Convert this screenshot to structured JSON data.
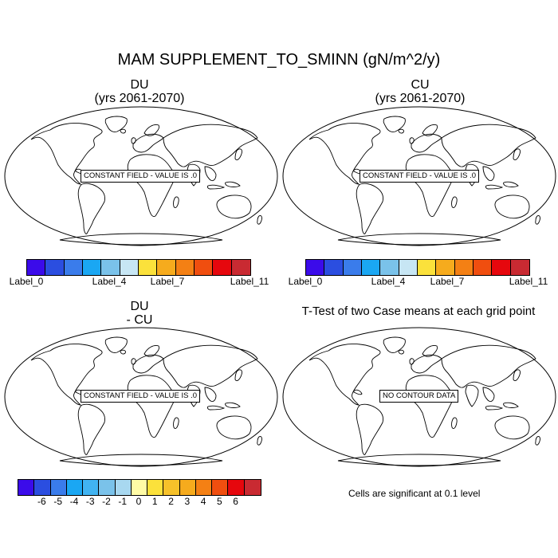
{
  "main_title": "MAM SUPPLEMENT_TO_SMINN (gN/m^2/y)",
  "panels": [
    {
      "title_line1": "DU",
      "title_line2": "(yrs 2061-2070)",
      "box_text": "CONSTANT FIELD - VALUE IS .0"
    },
    {
      "title_line1": "CU",
      "title_line2": "(yrs 2061-2070)",
      "box_text": "CONSTANT FIELD - VALUE IS .0"
    },
    {
      "title_line1": "DU",
      "title_line2": "- CU",
      "box_text": "CONSTANT FIELD - VALUE IS .0"
    },
    {
      "title_line1": "T-Test of two Case means at each grid point",
      "box_text": "NO CONTOUR DATA"
    }
  ],
  "colorbar_top": {
    "colors": [
      "#3b0bea",
      "#2b4ee0",
      "#3a7ceb",
      "#1aa7f3",
      "#7ac2ea",
      "#c7e6f4",
      "#fbe13b",
      "#f6ab1d",
      "#f48014",
      "#f04e0f",
      "#e6070d",
      "#c92a32"
    ],
    "labels": [
      "Label_0",
      "Label_4",
      "Label_7",
      "Label_11"
    ]
  },
  "colorbar_bottom": {
    "colors": [
      "#3b0bea",
      "#2b4ee0",
      "#3a7ceb",
      "#1aa7f3",
      "#41b4f2",
      "#7ac2ea",
      "#a8d8f0",
      "#fffba6",
      "#fbe13b",
      "#f6c12a",
      "#f6ab1d",
      "#f48014",
      "#f04e0f",
      "#e6070d",
      "#c92a32"
    ],
    "labels": [
      "-6",
      "-5",
      "-4",
      "-3",
      "-2",
      "-1",
      "0",
      "1",
      "2",
      "3",
      "4",
      "5",
      "6"
    ]
  },
  "significance_note": "Cells are significant at 0.1 level"
}
